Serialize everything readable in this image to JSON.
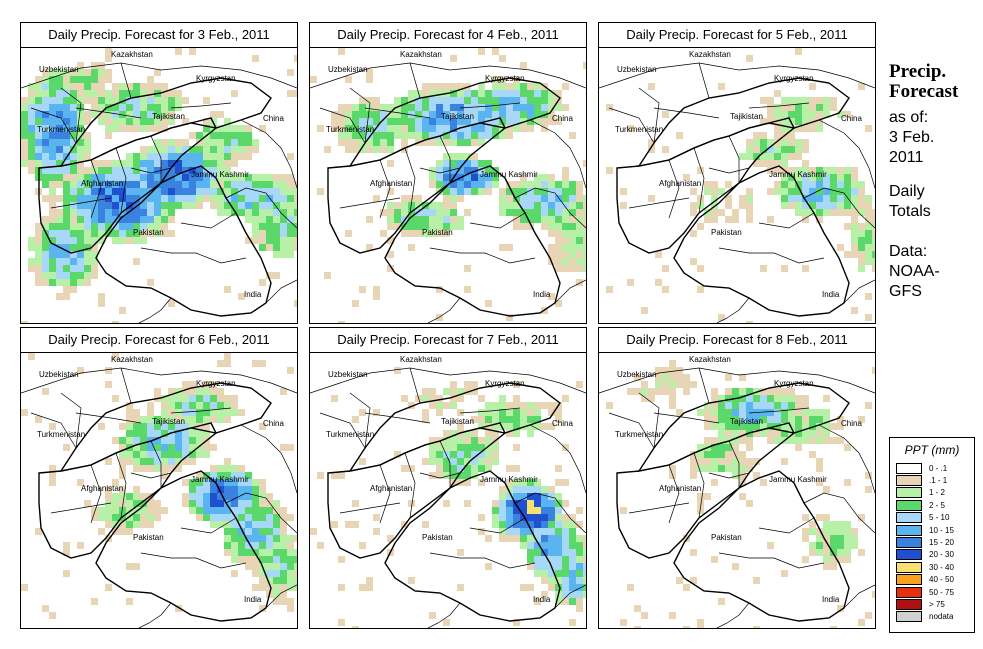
{
  "panels": [
    {
      "title": "Daily Precip. Forecast for  3 Feb., 2011",
      "intensity": "heavy-west"
    },
    {
      "title": "Daily Precip. Forecast for  4 Feb., 2011",
      "intensity": "north"
    },
    {
      "title": "Daily Precip. Forecast for  5 Feb., 2011",
      "intensity": "light"
    },
    {
      "title": "Daily Precip. Forecast for  6 Feb., 2011",
      "intensity": "kashmir"
    },
    {
      "title": "Daily Precip. Forecast for  7 Feb., 2011",
      "intensity": "kashmir-heavy"
    },
    {
      "title": "Daily Precip. Forecast for  8 Feb., 2011",
      "intensity": "north-light"
    }
  ],
  "map_labels": {
    "kazakhstan": "Kazakhstan",
    "uzbekistan": "Uzbekistan",
    "kyrgyzstan": "Kyrgyzstan",
    "tajikistan": "Tajikistan",
    "turkmenistan": "Turkmenistan",
    "china": "China",
    "afghanistan": "Afghanistan",
    "jammu_kashmir": "Jammu Kashmir",
    "pakistan": "Pakistan",
    "india": "India"
  },
  "sidebar": {
    "title_line1": "Precip.",
    "title_line2": "Forecast",
    "asof_line1": "as of:",
    "asof_line2": "3 Feb.",
    "asof_line3": "2011",
    "daily_line1": "Daily",
    "daily_line2": "Totals",
    "data_line1": "Data:",
    "data_line2": "NOAA-",
    "data_line3": "GFS"
  },
  "legend": {
    "title": "PPT (mm)",
    "items": [
      {
        "label": "0 - .1",
        "color": "#ffffff"
      },
      {
        "label": ".1 - 1",
        "color": "#e8d5b5"
      },
      {
        "label": "1 - 2",
        "color": "#b9f0a8"
      },
      {
        "label": "2 - 5",
        "color": "#5ad96a"
      },
      {
        "label": "5 - 10",
        "color": "#a8d8f8"
      },
      {
        "label": "10 - 15",
        "color": "#5ab4f0"
      },
      {
        "label": "15 - 20",
        "color": "#3a82e0"
      },
      {
        "label": "20 - 30",
        "color": "#1e50d0"
      },
      {
        "label": "30 - 40",
        "color": "#f8e070"
      },
      {
        "label": "40 - 50",
        "color": "#f8a020"
      },
      {
        "label": "50 - 75",
        "color": "#e83010"
      },
      {
        "label": "> 75",
        "color": "#b01010"
      },
      {
        "label": "nodata",
        "color": "#d0d0d0"
      }
    ]
  }
}
